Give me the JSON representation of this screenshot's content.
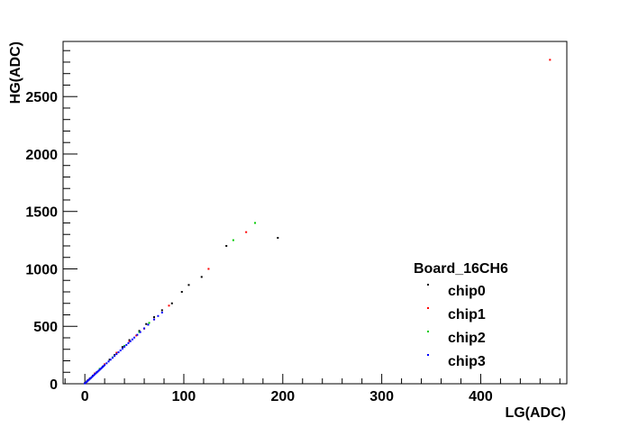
{
  "chart_data": {
    "type": "scatter",
    "title": "",
    "xlabel": "LG(ADC)",
    "ylabel": "HG(ADC)",
    "xlim": [
      -22,
      487
    ],
    "ylim": [
      0,
      2980
    ],
    "xticks": [
      0,
      100,
      200,
      300,
      400
    ],
    "yticks": [
      0,
      500,
      1000,
      1500,
      2000,
      2500
    ],
    "grid": false,
    "legend": {
      "title": "Board_16CH6",
      "placement": "bottom-right"
    },
    "series": [
      {
        "name": "chip0",
        "color": "#000000",
        "x": [
          0,
          1,
          2,
          3,
          5,
          8,
          12,
          18,
          25,
          30,
          38,
          45,
          55,
          62,
          70,
          78,
          88,
          98,
          105,
          118,
          143,
          195
        ],
        "y": [
          5,
          10,
          20,
          30,
          45,
          70,
          100,
          150,
          210,
          250,
          320,
          380,
          460,
          520,
          580,
          640,
          700,
          800,
          860,
          930,
          1200,
          1270
        ]
      },
      {
        "name": "chip1",
        "color": "#ff0000",
        "x": [
          1,
          4,
          10,
          20,
          32,
          45,
          52,
          60,
          70,
          85,
          125,
          163,
          470
        ],
        "y": [
          8,
          35,
          90,
          170,
          270,
          370,
          420,
          480,
          560,
          680,
          1000,
          1320,
          2820
        ]
      },
      {
        "name": "chip2",
        "color": "#00cc00",
        "x": [
          1,
          6,
          15,
          28,
          40,
          55,
          65,
          150,
          172
        ],
        "y": [
          10,
          50,
          130,
          230,
          330,
          450,
          530,
          1250,
          1400
        ]
      },
      {
        "name": "chip3",
        "color": "#0000ff",
        "x": [
          0,
          1,
          2,
          3,
          4,
          5,
          6,
          7,
          8,
          9,
          10,
          11,
          12,
          13,
          14,
          15,
          16,
          17,
          18,
          19,
          20,
          22,
          24,
          26,
          28,
          30,
          32,
          34,
          36,
          38,
          40,
          42,
          44,
          46,
          48,
          50,
          53,
          56,
          60,
          64,
          70,
          74,
          78
        ],
        "y": [
          3,
          10,
          18,
          26,
          34,
          42,
          50,
          58,
          66,
          74,
          82,
          90,
          98,
          106,
          114,
          122,
          130,
          138,
          146,
          154,
          162,
          178,
          194,
          210,
          226,
          242,
          258,
          274,
          290,
          306,
          322,
          338,
          354,
          370,
          386,
          402,
          426,
          450,
          482,
          514,
          560,
          590,
          620
        ]
      }
    ]
  }
}
